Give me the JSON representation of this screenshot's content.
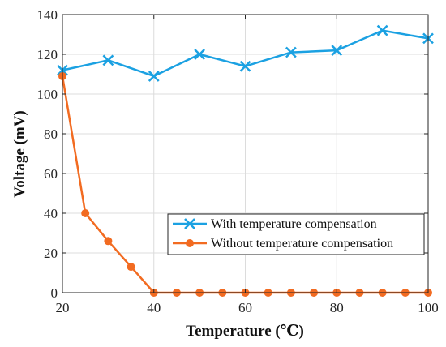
{
  "chart_data": {
    "type": "line",
    "title": "",
    "xlabel": "Temperature (℃)",
    "ylabel": "Voltage (mV)",
    "xlim": [
      20,
      100
    ],
    "ylim": [
      0,
      140
    ],
    "xticks": [
      20,
      40,
      60,
      80,
      100
    ],
    "yticks": [
      0,
      20,
      40,
      60,
      80,
      100,
      120,
      140
    ],
    "grid": true,
    "legend_position": "lower-right",
    "series": [
      {
        "name": "With temperature compensation",
        "color": "#1ba1e2",
        "marker": "x",
        "x": [
          20,
          30,
          40,
          50,
          60,
          70,
          80,
          90,
          100
        ],
        "y": [
          112,
          117,
          109,
          120,
          114,
          121,
          122,
          132,
          128
        ]
      },
      {
        "name": "Without temperature compensation",
        "color": "#f26b21",
        "marker": "circle",
        "x": [
          20,
          25,
          30,
          35,
          40,
          45,
          50,
          55,
          60,
          65,
          70,
          75,
          80,
          85,
          90,
          95,
          100
        ],
        "y": [
          109,
          40,
          26,
          13,
          0,
          0,
          0,
          0,
          0,
          0,
          0,
          0,
          0,
          0,
          0,
          0,
          0
        ]
      }
    ]
  }
}
